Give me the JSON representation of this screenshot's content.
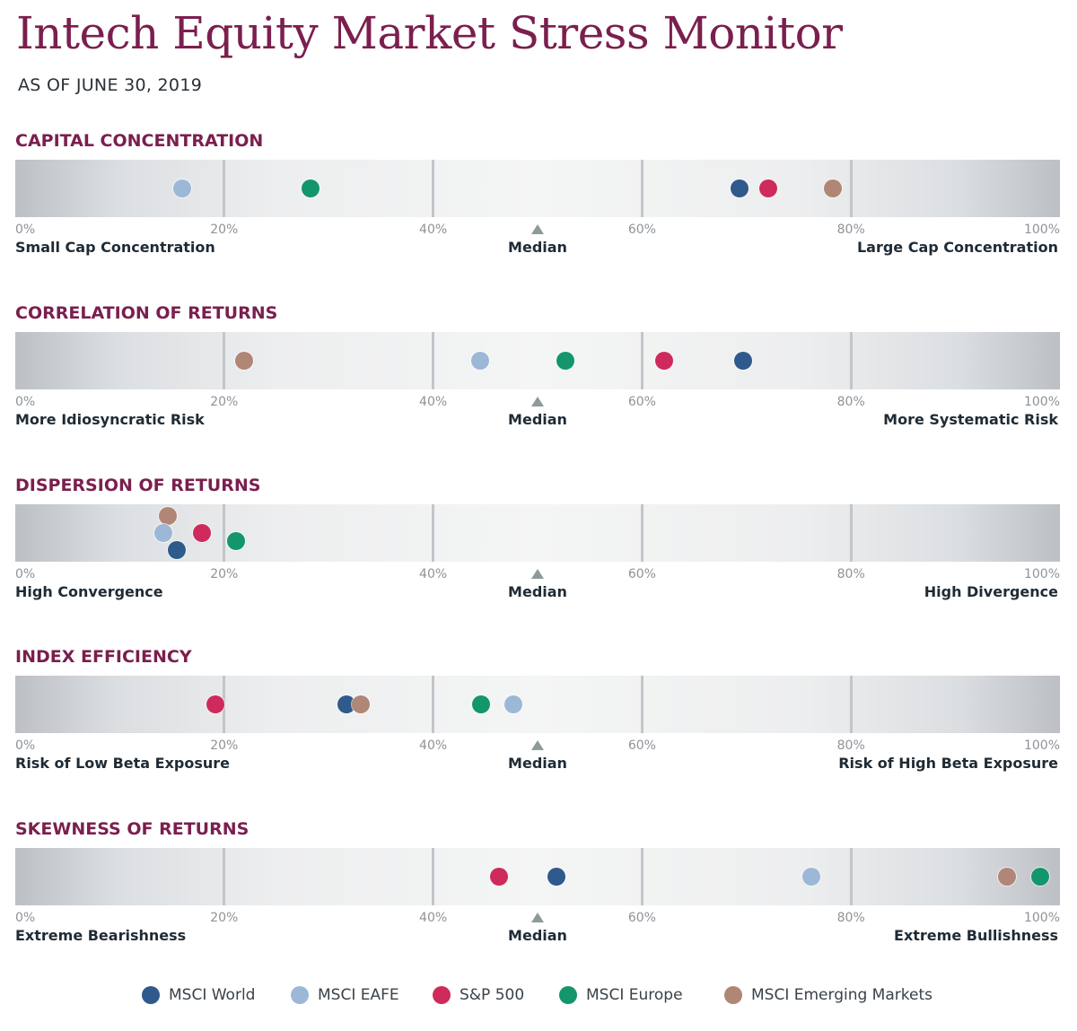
{
  "header": {
    "title": "Intech Equity Market Stress Monitor",
    "subtitle": "AS OF JUNE 30, 2019"
  },
  "colors": {
    "MSCI World": "#2f5a8c",
    "MSCI EAFE": "#9db7d6",
    "S&P 500": "#cf2a5c",
    "MSCI Europe": "#14966c",
    "MSCI Emerging Markets": "#b08676"
  },
  "chart_data": [
    {
      "type": "scatter",
      "title": "CAPITAL CONCENTRATION",
      "xlim": [
        0,
        100
      ],
      "ticks": [
        "0%",
        "20%",
        "40%",
        "60%",
        "80%",
        "100%"
      ],
      "left_label": "Small Cap Concentration",
      "center_label": "Median",
      "right_label": "Large Cap Concentration",
      "points": [
        {
          "series": "MSCI EAFE",
          "x": 16,
          "row": 0
        },
        {
          "series": "MSCI Europe",
          "x": 28.3,
          "row": 0
        },
        {
          "series": "MSCI World",
          "x": 69.3,
          "row": 0
        },
        {
          "series": "S&P 500",
          "x": 72.1,
          "row": 0
        },
        {
          "series": "MSCI Emerging Markets",
          "x": 78.3,
          "row": 0
        }
      ]
    },
    {
      "type": "scatter",
      "title": "CORRELATION OF RETURNS",
      "xlim": [
        0,
        100
      ],
      "ticks": [
        "0%",
        "20%",
        "40%",
        "60%",
        "80%",
        "100%"
      ],
      "left_label": "More Idiosyncratic Risk",
      "center_label": "Median",
      "right_label": "More Systematic Risk",
      "points": [
        {
          "series": "MSCI Emerging Markets",
          "x": 21.9,
          "row": 0
        },
        {
          "series": "MSCI EAFE",
          "x": 44.5,
          "row": 0
        },
        {
          "series": "MSCI Europe",
          "x": 52.7,
          "row": 0
        },
        {
          "series": "S&P 500",
          "x": 62.1,
          "row": 0
        },
        {
          "series": "MSCI World",
          "x": 69.7,
          "row": 0
        }
      ]
    },
    {
      "type": "scatter",
      "title": "DISPERSION OF RETURNS",
      "xlim": [
        0,
        100
      ],
      "ticks": [
        "0%",
        "20%",
        "40%",
        "60%",
        "80%",
        "100%"
      ],
      "left_label": "High Convergence",
      "center_label": "Median",
      "right_label": "High Divergence",
      "points": [
        {
          "series": "MSCI Emerging Markets",
          "x": 14.6,
          "row": -1
        },
        {
          "series": "MSCI EAFE",
          "x": 14.2,
          "row": 0
        },
        {
          "series": "S&P 500",
          "x": 17.9,
          "row": 0
        },
        {
          "series": "MSCI Europe",
          "x": 21.1,
          "row": 0.45
        },
        {
          "series": "MSCI World",
          "x": 15.5,
          "row": 1
        }
      ]
    },
    {
      "type": "scatter",
      "title": "INDEX EFFICIENCY",
      "xlim": [
        0,
        100
      ],
      "ticks": [
        "0%",
        "20%",
        "40%",
        "60%",
        "80%",
        "100%"
      ],
      "left_label": "Risk of Low Beta Exposure",
      "center_label": "Median",
      "right_label": "Risk of High Beta Exposure",
      "points": [
        {
          "series": "S&P 500",
          "x": 19.2,
          "row": 0
        },
        {
          "series": "MSCI World",
          "x": 31.7,
          "row": 0
        },
        {
          "series": "MSCI Emerging Markets",
          "x": 33.1,
          "row": 0
        },
        {
          "series": "MSCI Europe",
          "x": 44.6,
          "row": 0
        },
        {
          "series": "MSCI EAFE",
          "x": 47.7,
          "row": 0
        }
      ]
    },
    {
      "type": "scatter",
      "title": "SKEWNESS OF RETURNS",
      "xlim": [
        0,
        100
      ],
      "ticks": [
        "0%",
        "20%",
        "40%",
        "60%",
        "80%",
        "100%"
      ],
      "left_label": "Extreme Bearishness",
      "center_label": "Median",
      "right_label": "Extreme Bullishness",
      "points": [
        {
          "series": "S&P 500",
          "x": 46.3,
          "row": 0
        },
        {
          "series": "MSCI World",
          "x": 51.8,
          "row": 0
        },
        {
          "series": "MSCI EAFE",
          "x": 76.2,
          "row": 0
        },
        {
          "series": "MSCI Emerging Markets",
          "x": 94.9,
          "row": 0
        },
        {
          "series": "MSCI Europe",
          "x": 98.1,
          "row": 0
        }
      ]
    }
  ],
  "legend": [
    "MSCI World",
    "MSCI EAFE",
    "S&P 500",
    "MSCI Europe",
    "MSCI Emerging Markets"
  ]
}
